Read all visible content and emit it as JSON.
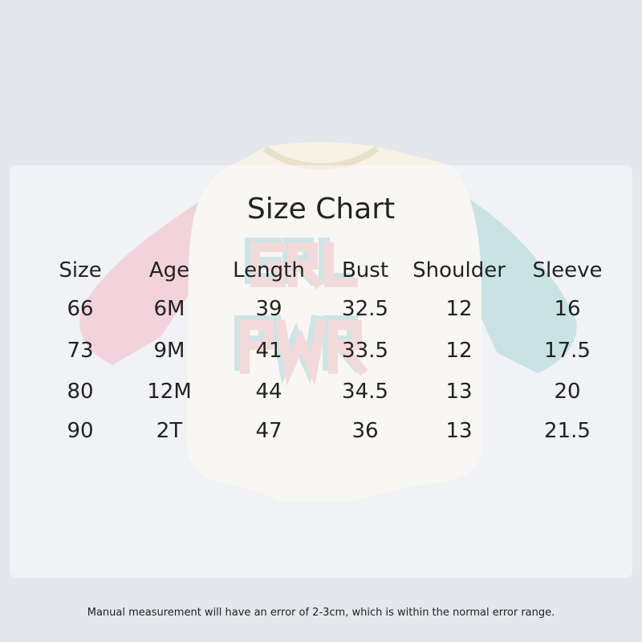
{
  "title": "Size Chart",
  "product_graphic_text": "GRL PWR",
  "table": {
    "headers": [
      "Size",
      "Age",
      "Length",
      "Bust",
      "Shoulder",
      "Sleeve"
    ],
    "rows": [
      [
        "66",
        "6M",
        "39",
        "32.5",
        "12",
        "16"
      ],
      [
        "73",
        "9M",
        "41",
        "33.5",
        "12",
        "17.5"
      ],
      [
        "80",
        "12M",
        "44",
        "34.5",
        "13",
        "20"
      ],
      [
        "90",
        "2T",
        "47",
        "36",
        "13",
        "21.5"
      ]
    ]
  },
  "note": "Manual measurement will have an error of 2-3cm, which is within the normal error range.",
  "colors": {
    "background": "#e4e7eb",
    "body": "#f6f2e6",
    "left_sleeve": "#e9a3b3",
    "right_sleeve": "#8fc6c6",
    "text": "#222222"
  }
}
